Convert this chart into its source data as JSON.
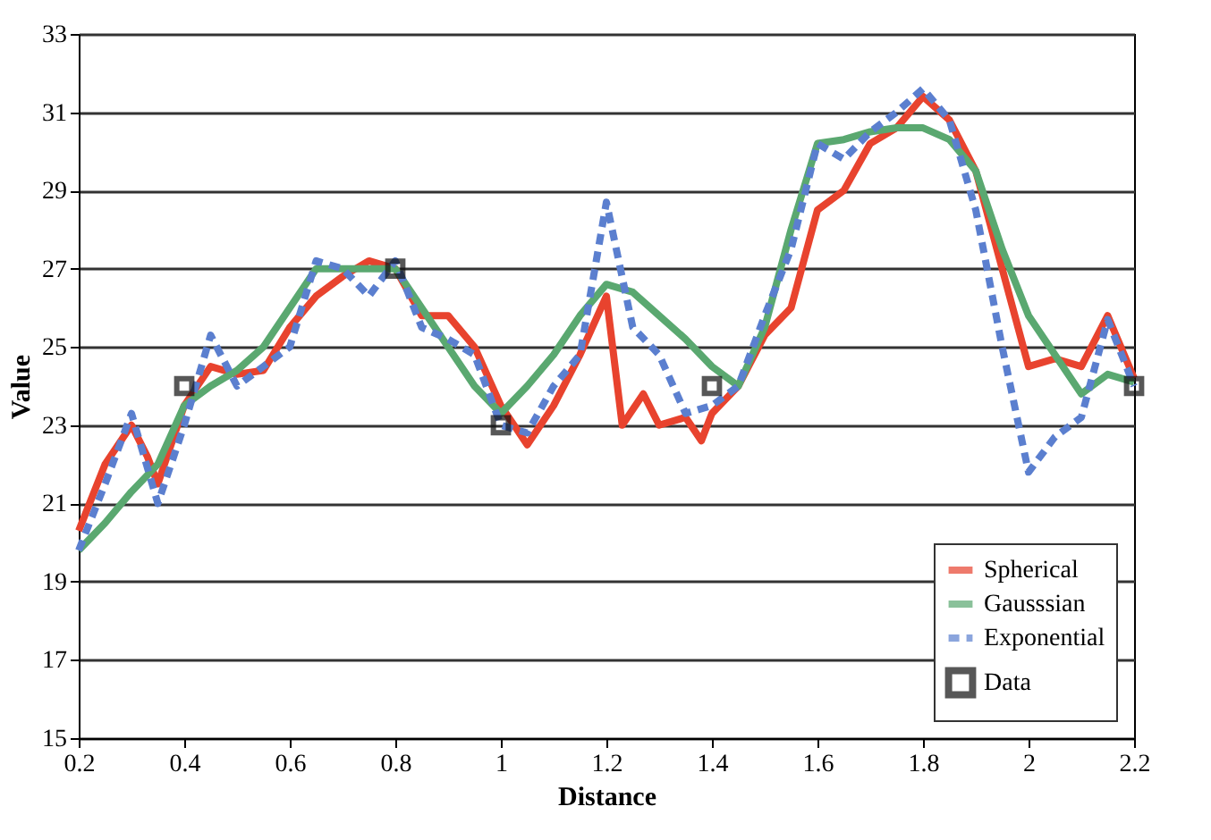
{
  "chart_data": {
    "type": "line",
    "xlabel": "Distance",
    "ylabel": "Value",
    "xlim": [
      0.2,
      2.2
    ],
    "xticks": [
      0.2,
      0.4,
      0.6,
      0.8,
      1,
      1.2,
      1.4,
      1.6,
      1.8,
      2,
      2.2
    ],
    "ylim": [
      15,
      33
    ],
    "yticks": [
      15,
      17,
      19,
      21,
      23,
      25,
      27,
      29,
      31,
      33
    ],
    "grid": "y",
    "legend": "bottom right",
    "series": [
      {
        "name": "Spherical",
        "color": "#e8432e",
        "marker": "none",
        "line_style": "solid",
        "x": [
          0.2,
          0.25,
          0.3,
          0.33,
          0.35,
          0.4,
          0.45,
          0.5,
          0.55,
          0.6,
          0.65,
          0.7,
          0.75,
          0.8,
          0.85,
          0.9,
          0.95,
          1.0,
          1.05,
          1.1,
          1.15,
          1.2,
          1.23,
          1.27,
          1.3,
          1.35,
          1.38,
          1.4,
          1.45,
          1.5,
          1.55,
          1.6,
          1.65,
          1.7,
          1.75,
          1.8,
          1.85,
          1.9,
          1.95,
          2.0,
          2.05,
          2.1,
          2.15,
          2.2
        ],
        "values": [
          20.3,
          22.0,
          23.0,
          22.2,
          21.5,
          23.5,
          24.5,
          24.3,
          24.4,
          25.5,
          26.3,
          26.8,
          27.2,
          27.0,
          25.8,
          25.8,
          25.0,
          23.5,
          22.5,
          23.5,
          24.8,
          26.3,
          23.0,
          23.8,
          23.0,
          23.2,
          22.6,
          23.3,
          24.0,
          25.3,
          26.0,
          28.5,
          29.0,
          30.2,
          30.6,
          31.4,
          30.8,
          29.5,
          27.0,
          24.5,
          24.7,
          24.5,
          25.8,
          24.2
        ]
      },
      {
        "name": "Gausssian",
        "color": "#5aa870",
        "marker": "none",
        "line_style": "solid",
        "x": [
          0.2,
          0.25,
          0.3,
          0.35,
          0.4,
          0.45,
          0.5,
          0.55,
          0.6,
          0.65,
          0.7,
          0.75,
          0.8,
          0.85,
          0.9,
          0.95,
          1.0,
          1.05,
          1.1,
          1.15,
          1.2,
          1.25,
          1.3,
          1.35,
          1.4,
          1.45,
          1.5,
          1.55,
          1.6,
          1.65,
          1.7,
          1.75,
          1.8,
          1.85,
          1.9,
          1.95,
          2.0,
          2.05,
          2.1,
          2.15,
          2.2
        ],
        "values": [
          19.8,
          20.5,
          21.3,
          22.0,
          23.5,
          24.0,
          24.4,
          25.0,
          26.0,
          27.0,
          27.0,
          27.0,
          27.0,
          26.0,
          25.0,
          24.0,
          23.3,
          24.0,
          24.8,
          25.8,
          26.6,
          26.4,
          25.8,
          25.2,
          24.5,
          24.0,
          25.5,
          28.0,
          30.2,
          30.3,
          30.5,
          30.6,
          30.6,
          30.3,
          29.5,
          27.5,
          25.8,
          24.8,
          23.8,
          24.3,
          24.1
        ]
      },
      {
        "name": "Exponential",
        "color": "#5b7fcf",
        "marker": "none",
        "line_style": "dashed",
        "x": [
          0.2,
          0.25,
          0.3,
          0.35,
          0.4,
          0.45,
          0.5,
          0.55,
          0.6,
          0.65,
          0.7,
          0.75,
          0.8,
          0.85,
          0.9,
          0.95,
          1.0,
          1.05,
          1.1,
          1.15,
          1.2,
          1.25,
          1.3,
          1.35,
          1.4,
          1.45,
          1.5,
          1.55,
          1.6,
          1.65,
          1.7,
          1.75,
          1.8,
          1.85,
          1.9,
          1.95,
          2.0,
          2.05,
          2.1,
          2.15,
          2.2
        ],
        "values": [
          19.8,
          21.5,
          23.3,
          21.0,
          23.0,
          25.3,
          24.0,
          24.5,
          25.0,
          27.2,
          27.0,
          26.3,
          27.2,
          25.5,
          25.2,
          24.8,
          23.0,
          22.8,
          24.0,
          24.8,
          28.7,
          25.5,
          24.8,
          23.3,
          23.5,
          24.0,
          25.8,
          27.5,
          30.2,
          29.8,
          30.5,
          31.0,
          31.6,
          30.8,
          28.5,
          25.0,
          21.8,
          22.7,
          23.2,
          25.7,
          24.0
        ]
      },
      {
        "name": "Data",
        "type": "scatter",
        "color": "#111111",
        "marker": "square",
        "x": [
          0.4,
          0.8,
          1.0,
          1.4,
          2.2
        ],
        "values": [
          24,
          27,
          23,
          24,
          24
        ]
      }
    ]
  }
}
